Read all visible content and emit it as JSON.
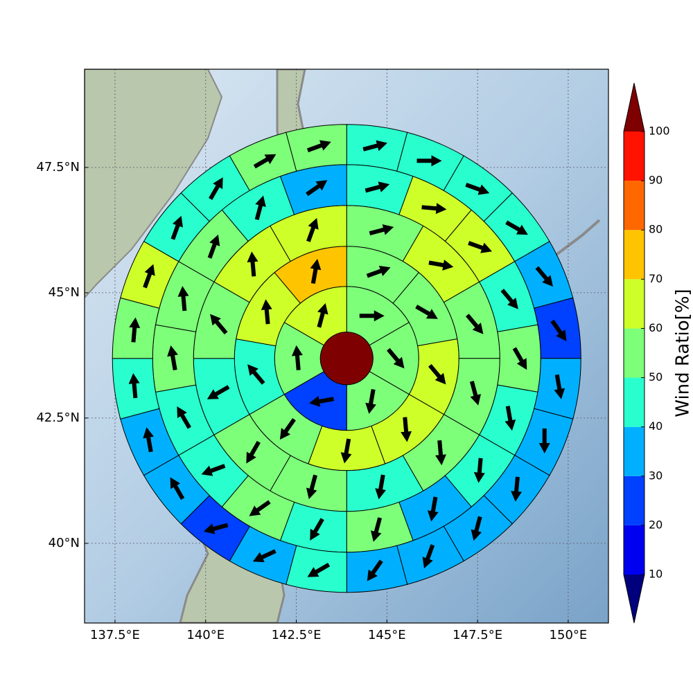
{
  "chart_data": {
    "type": "sector-map",
    "xlim": [
      136.66,
      151.11
    ],
    "ylim": [
      38.41,
      49.46
    ],
    "xticks": [
      {
        "value": 137.5,
        "label": "137.5°E"
      },
      {
        "value": 140,
        "label": "140°E"
      },
      {
        "value": 142.5,
        "label": "142.5°E"
      },
      {
        "value": 145,
        "label": "145°E"
      },
      {
        "value": 147.5,
        "label": "147.5°E"
      },
      {
        "value": 150,
        "label": "150°E"
      }
    ],
    "yticks": [
      {
        "value": 40,
        "label": "40°N"
      },
      {
        "value": 42.5,
        "label": "42.5°N"
      },
      {
        "value": 45,
        "label": "45°N"
      },
      {
        "value": 47.5,
        "label": "47.5°N"
      }
    ],
    "grid": true,
    "center": {
      "lon": 143.89,
      "lat": 43.69,
      "value": 100
    },
    "rings": [
      {
        "values": [
          55,
          55,
          55,
          25,
          55,
          65
        ],
        "directions": [
          90,
          140,
          190,
          260,
          355,
          15
        ]
      },
      {
        "values": [
          55,
          55,
          65,
          65,
          65,
          55,
          45,
          65,
          75
        ],
        "directions": [
          70,
          120,
          140,
          175,
          190,
          215,
          320,
          355,
          10
        ]
      },
      {
        "values": [
          55,
          65,
          55,
          55,
          55,
          45,
          55,
          55,
          45,
          55,
          65,
          65
        ],
        "directions": [
          75,
          100,
          140,
          165,
          175,
          190,
          195,
          210,
          240,
          320,
          355,
          20
        ]
      },
      {
        "values": [
          45,
          65,
          65,
          45,
          55,
          45,
          45,
          35,
          55,
          45,
          55,
          45,
          45,
          55,
          55,
          55,
          45,
          35
        ],
        "directions": [
          75,
          95,
          110,
          140,
          150,
          170,
          185,
          190,
          195,
          210,
          235,
          250,
          330,
          350,
          355,
          20,
          15,
          55
        ]
      },
      {
        "values": [
          45,
          45,
          45,
          45,
          35,
          25,
          35,
          35,
          35,
          35,
          35,
          35,
          45,
          35,
          25,
          35,
          35,
          45,
          55,
          65,
          45,
          45,
          55,
          55
        ],
        "directions": [
          75,
          90,
          110,
          120,
          140,
          145,
          170,
          180,
          185,
          195,
          200,
          215,
          240,
          245,
          255,
          330,
          350,
          355,
          5,
          20,
          20,
          30,
          60,
          70
        ]
      }
    ],
    "colorbar": {
      "label": "Wind Ratio[%]",
      "ticks": [
        10,
        20,
        30,
        40,
        50,
        60,
        70,
        80,
        90,
        100
      ],
      "colors": [
        "#00007f",
        "#0000f1",
        "#0040ff",
        "#00b0ff",
        "#29ffce",
        "#7dff7a",
        "#ceff29",
        "#ffc400",
        "#ff6800",
        "#ff1300",
        "#7f0000"
      ]
    }
  }
}
